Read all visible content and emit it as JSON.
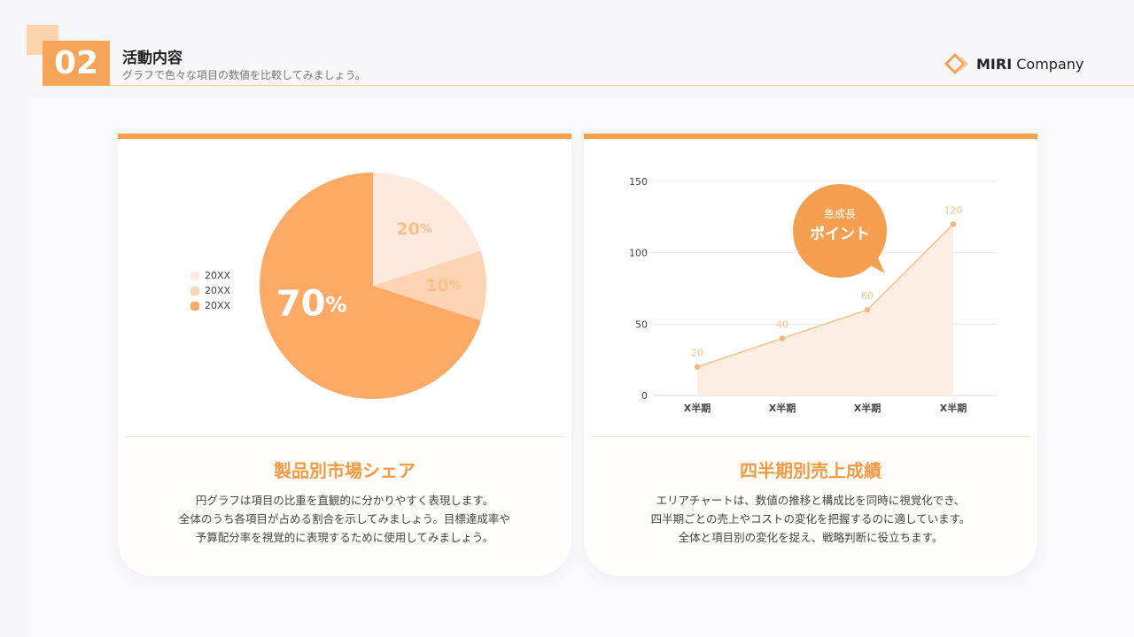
{
  "header": {
    "number": "02",
    "title": "活動内容",
    "subtitle": "グラフで色々な項目の数値を比較してみましょう。"
  },
  "logo": {
    "bold": "MIRI",
    "rest": " Company"
  },
  "colors": {
    "accent": "#f5a050",
    "pie_main": "#fdaa66",
    "pie_mid": "#fdd4b1",
    "pie_light": "#fde9dd",
    "area_fill": "#fdeee4",
    "area_line": "#fbc08c"
  },
  "left_card": {
    "title": "製品別市場シェア",
    "desc": [
      "円グラフは項目の比重を直観的に分かりやすく表現します。",
      "全体のうち各項目が占める割合を示してみましょう。目標達成率や",
      "予算配分率を視覚的に表現するために使用してみましょう。"
    ]
  },
  "right_card": {
    "title": "四半期別売上成績",
    "desc": [
      "エリアチャートは、数値の推移と構成比を同時に視覚化でき、",
      "四半期ごとの売上やコストの変化を把握するのに適しています。",
      "全体と項目別の変化を捉え、戦略判断に役立ちます。"
    ],
    "callout": {
      "line1": "急成長",
      "line2": "ポイント"
    }
  },
  "chart_data": [
    {
      "type": "pie",
      "slices": [
        {
          "label": "20XX",
          "value": 20,
          "display": "20",
          "unit": "%"
        },
        {
          "label": "20XX",
          "value": 10,
          "display": "10",
          "unit": "%"
        },
        {
          "label": "20XX",
          "value": 70,
          "display": "70",
          "unit": "%"
        }
      ],
      "legend_position": "left"
    },
    {
      "type": "area",
      "categories": [
        "X半期",
        "X半期",
        "X半期",
        "X半期"
      ],
      "values": [
        20,
        40,
        60,
        120
      ],
      "ylim": [
        0,
        150
      ],
      "yticks": [
        0,
        50,
        100,
        150
      ],
      "grid": true
    }
  ]
}
